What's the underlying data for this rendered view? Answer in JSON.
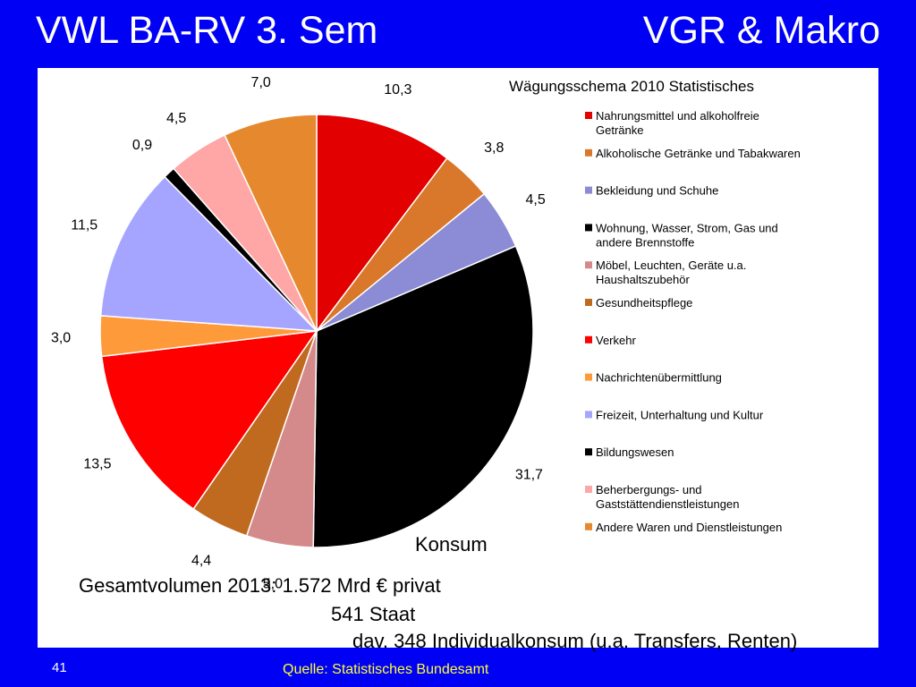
{
  "header": {
    "left_title": "VWL BA-RV 3. Sem",
    "right_title": "VGR & Makro"
  },
  "chart_data": {
    "type": "pie",
    "title": "Wägungsschema 2010 Statistisches",
    "start_angle_deg": 0,
    "direction": "clockwise",
    "legend_position": "right",
    "slices": [
      {
        "label": "Nahrungsmittel und alkoholfreie Getränke",
        "value_label": "10,3",
        "value": 10.3,
        "color": "#e30000"
      },
      {
        "label": "Alkoholische Getränke und Tabakwaren",
        "value_label": "3,8",
        "value": 3.8,
        "color": "#d9782a"
      },
      {
        "label": "Bekleidung und Schuhe",
        "value_label": "4,5",
        "value": 4.5,
        "color": "#8b8bd6"
      },
      {
        "label": "Wohnung, Wasser, Strom, Gas und andere Brennstoffe",
        "value_label": "31,7",
        "value": 31.7,
        "color": "#000000"
      },
      {
        "label": "Möbel, Leuchten, Geräte u.a. Haushaltszubehör",
        "value_label": "5,0",
        "value": 5.0,
        "color": "#d48a8a"
      },
      {
        "label": "Gesundheitspflege",
        "value_label": "4,4",
        "value": 4.4,
        "color": "#c06a20"
      },
      {
        "label": "Verkehr",
        "value_label": "13,5",
        "value": 13.5,
        "color": "#ff0000"
      },
      {
        "label": "Nachrichtenübermittlung",
        "value_label": "3,0",
        "value": 3.0,
        "color": "#ff9a3a"
      },
      {
        "label": "Freizeit, Unterhaltung und Kultur",
        "value_label": "11,5",
        "value": 11.5,
        "color": "#a5a5ff"
      },
      {
        "label": "Bildungswesen",
        "value_label": "0,9",
        "value": 0.9,
        "color": "#000000"
      },
      {
        "label": "Beherbergungs- und Gaststättendienstleistungen",
        "value_label": "4,5",
        "value": 4.5,
        "color": "#ffa6a6"
      },
      {
        "label": "Andere Waren und Dienstleistungen",
        "value_label": "7,0",
        "value": 7.0,
        "color": "#e6892e"
      }
    ]
  },
  "annotations": {
    "konsum": "Konsum",
    "line1": "Gesamtvolumen 2013: 1.572 Mrd € privat",
    "line2": "541 Staat",
    "line3": "dav. 348 Individualkonsum (u.a. Transfers, Renten)"
  },
  "footer": {
    "slide_number": "41",
    "source": "Quelle: Statistisches Bundesamt"
  }
}
